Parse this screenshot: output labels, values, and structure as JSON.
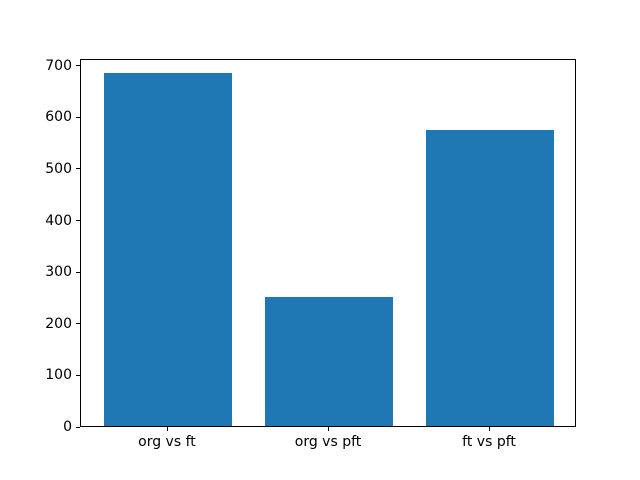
{
  "chart_data": {
    "type": "bar",
    "title": "",
    "xlabel": "",
    "ylabel": "",
    "categories": [
      "org vs ft",
      "org vs pft",
      "ft vs pft"
    ],
    "values": [
      683,
      249,
      573
    ],
    "yticks": [
      0,
      100,
      200,
      300,
      400,
      500,
      600,
      700
    ],
    "ylim": [
      0,
      713
    ],
    "xlim_span": 3.08,
    "bar_unit_width": 0.8,
    "x_offset": 0.54,
    "bar_color": "#1f77b4",
    "axis_color": "#000000",
    "text_color": "#000000",
    "background_color": "#ffffff",
    "grid": false,
    "legend": null
  }
}
